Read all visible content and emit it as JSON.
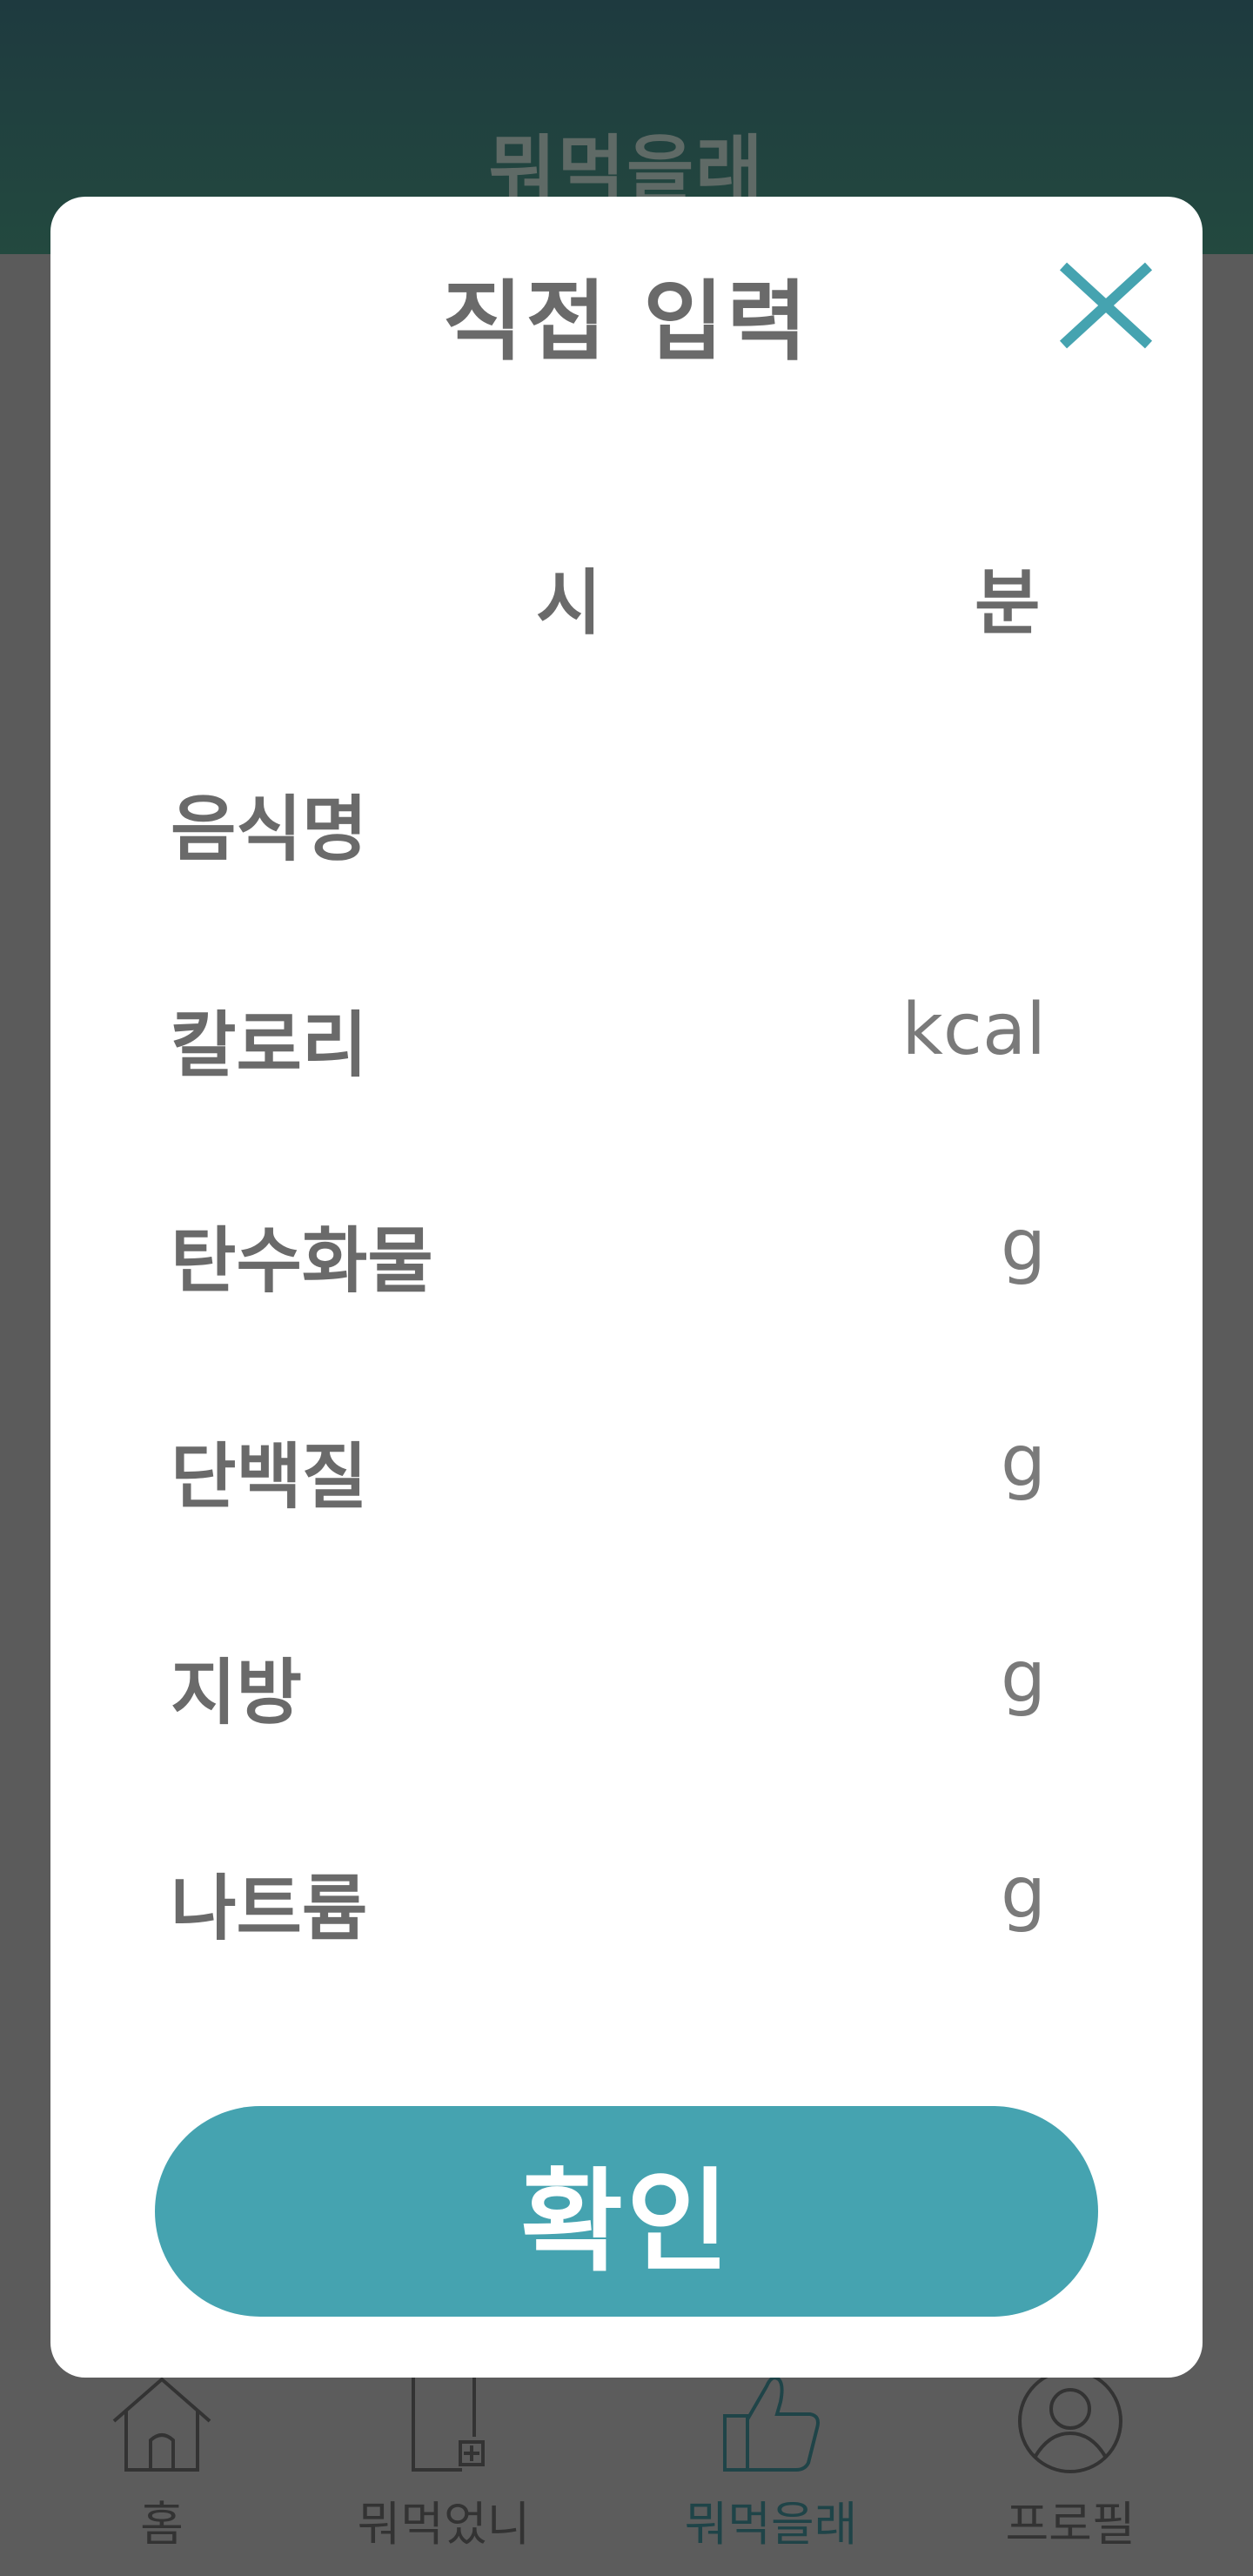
{
  "app": {
    "title": "뭐먹을래"
  },
  "modal": {
    "title": "직접 입력",
    "close_icon": "close-x-icon",
    "accent_color": "#45a3b0",
    "time": {
      "hour_label": "시",
      "minute_label": "분"
    },
    "fields": [
      {
        "label": "음식명",
        "unit": ""
      },
      {
        "label": "칼로리",
        "unit": "kcal"
      },
      {
        "label": "탄수화물",
        "unit": "g"
      },
      {
        "label": "단백질",
        "unit": "g"
      },
      {
        "label": "지방",
        "unit": "g"
      },
      {
        "label": "나트륨",
        "unit": "g"
      }
    ],
    "confirm_label": "확인"
  },
  "nav": {
    "items": [
      {
        "label": "홈",
        "icon": "home-icon"
      },
      {
        "label": "뭐먹었니",
        "icon": "add-document-icon"
      },
      {
        "label": "뭐먹을래",
        "icon": "thumbs-up-icon",
        "active": true
      },
      {
        "label": "프로필",
        "icon": "profile-icon"
      }
    ]
  }
}
